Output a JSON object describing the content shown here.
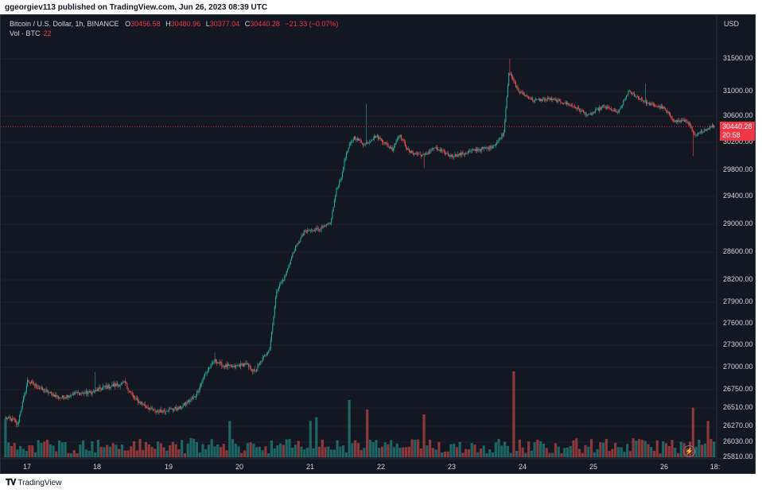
{
  "header": {
    "publish_text": "ggeorgiev113 published on TradingView.com, Jun 26, 2023 08:39 UTC"
  },
  "legend": {
    "symbol": "Bitcoin / U.S. Dollar, 1h, BINANCE",
    "open_key": "O",
    "open": "30456.58",
    "high_key": "H",
    "high": "30480.96",
    "low_key": "L",
    "low": "30377.04",
    "close_key": "C",
    "close": "30440.28",
    "change": "−21.33 (−0.07%)",
    "vol_label": "Vol · BTC",
    "vol_value": "22"
  },
  "price_axis": {
    "currency": "USD",
    "labels": [
      "31500.00",
      "31000.00",
      "30600.00",
      "30200.00",
      "29800.00",
      "29400.00",
      "29000.00",
      "28600.00",
      "28200.00",
      "27900.00",
      "27600.00",
      "27300.00",
      "27000.00",
      "26750.00",
      "26510.00",
      "26270.00",
      "26030.00",
      "25810.00"
    ]
  },
  "time_axis": {
    "labels": [
      "17",
      "18",
      "19",
      "20",
      "21",
      "22",
      "23",
      "24",
      "25",
      "26",
      "18:"
    ]
  },
  "current_price": {
    "price": "30440.28",
    "countdown": "20:58",
    "color": "#f23645"
  },
  "colors": {
    "up": "#26a69a",
    "down": "#ef5350",
    "background": "#131722",
    "grid": "#1e222d"
  },
  "footer": {
    "brand": "TradingView",
    "logo_icon": "tradingview-logo-icon"
  },
  "chart_data": {
    "type": "candlestick",
    "symbol": "BTCUSD",
    "x_categories": [
      "17",
      "18",
      "19",
      "20",
      "21",
      "22",
      "23",
      "24",
      "25",
      "26"
    ],
    "ylim": [
      25810,
      31600
    ],
    "anchors_close": [
      [
        0,
        26380
      ],
      [
        8,
        26350
      ],
      [
        12,
        26280
      ],
      [
        15,
        26470
      ],
      [
        22,
        26850
      ],
      [
        35,
        26760
      ],
      [
        55,
        26640
      ],
      [
        70,
        26700
      ],
      [
        85,
        26710
      ],
      [
        100,
        26780
      ],
      [
        120,
        26820
      ],
      [
        130,
        26620
      ],
      [
        150,
        26460
      ],
      [
        175,
        26510
      ],
      [
        190,
        26660
      ],
      [
        200,
        26920
      ],
      [
        210,
        27090
      ],
      [
        218,
        27030
      ],
      [
        228,
        27000
      ],
      [
        240,
        27050
      ],
      [
        250,
        26950
      ],
      [
        265,
        27260
      ],
      [
        272,
        28060
      ],
      [
        280,
        28240
      ],
      [
        290,
        28640
      ],
      [
        300,
        28890
      ],
      [
        318,
        28950
      ],
      [
        326,
        29010
      ],
      [
        332,
        29500
      ],
      [
        338,
        29750
      ],
      [
        340,
        29950
      ],
      [
        345,
        30150
      ],
      [
        350,
        30280
      ],
      [
        360,
        30170
      ],
      [
        372,
        30300
      ],
      [
        388,
        30100
      ],
      [
        395,
        30320
      ],
      [
        405,
        30060
      ],
      [
        420,
        30010
      ],
      [
        430,
        30120
      ],
      [
        448,
        30000
      ],
      [
        462,
        30050
      ],
      [
        474,
        30100
      ],
      [
        485,
        30120
      ],
      [
        492,
        30180
      ],
      [
        500,
        30350
      ],
      [
        505,
        31300
      ],
      [
        515,
        31000
      ],
      [
        530,
        30850
      ],
      [
        545,
        30880
      ],
      [
        560,
        30820
      ],
      [
        570,
        30760
      ],
      [
        585,
        30610
      ],
      [
        600,
        30760
      ],
      [
        615,
        30650
      ],
      [
        625,
        31000
      ],
      [
        632,
        30930
      ],
      [
        645,
        30800
      ],
      [
        660,
        30730
      ],
      [
        672,
        30520
      ],
      [
        684,
        30530
      ],
      [
        692,
        30290
      ],
      [
        700,
        30380
      ],
      [
        710,
        30450
      ]
    ],
    "spikes": [
      {
        "i": 90,
        "high": 26950
      },
      {
        "i": 210,
        "high": 27200
      },
      {
        "i": 362,
        "high": 30800
      },
      {
        "i": 420,
        "high": 29830
      },
      {
        "i": 506,
        "high": 31500
      },
      {
        "i": 642,
        "high": 31120
      },
      {
        "i": 690,
        "high": 30000
      },
      {
        "i": 708,
        "high": 30480
      }
    ],
    "volume": {
      "max_btc": 100,
      "big_bars": [
        {
          "i": 0,
          "v": 40
        },
        {
          "i": 10,
          "v": 30
        },
        {
          "i": 40,
          "v": 35
        },
        {
          "i": 70,
          "v": 28
        },
        {
          "i": 100,
          "v": 25
        },
        {
          "i": 140,
          "v": 30
        },
        {
          "i": 175,
          "v": 35
        },
        {
          "i": 205,
          "v": 50
        },
        {
          "i": 218,
          "v": 45
        },
        {
          "i": 225,
          "v": 38
        },
        {
          "i": 245,
          "v": 30
        },
        {
          "i": 272,
          "v": 55
        },
        {
          "i": 280,
          "v": 70
        },
        {
          "i": 290,
          "v": 65
        },
        {
          "i": 302,
          "v": 60
        },
        {
          "i": 306,
          "v": 38
        },
        {
          "i": 312,
          "v": 42
        },
        {
          "i": 340,
          "v": 40
        },
        {
          "i": 345,
          "v": 60
        },
        {
          "i": 355,
          "v": 80
        },
        {
          "i": 363,
          "v": 50
        },
        {
          "i": 382,
          "v": 35
        },
        {
          "i": 400,
          "v": 38
        },
        {
          "i": 420,
          "v": 45
        },
        {
          "i": 430,
          "v": 30
        },
        {
          "i": 470,
          "v": 28
        },
        {
          "i": 500,
          "v": 42
        },
        {
          "i": 505,
          "v": 100
        },
        {
          "i": 510,
          "v": 90
        },
        {
          "i": 515,
          "v": 55
        },
        {
          "i": 560,
          "v": 30
        },
        {
          "i": 625,
          "v": 30
        },
        {
          "i": 640,
          "v": 35
        },
        {
          "i": 690,
          "v": 52
        },
        {
          "i": 705,
          "v": 38
        },
        {
          "i": 710,
          "v": 45
        }
      ]
    }
  }
}
